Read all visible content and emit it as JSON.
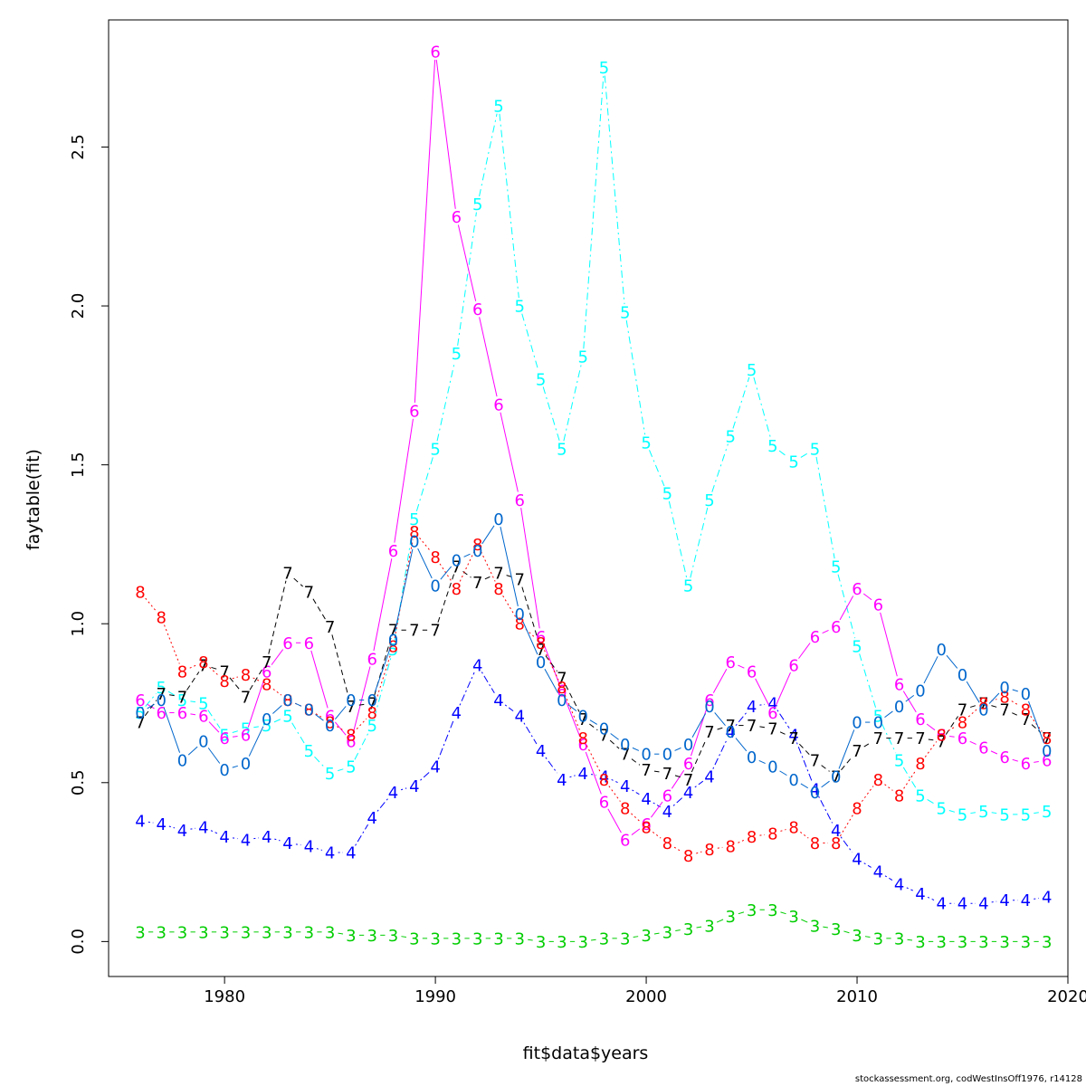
{
  "chart_data": {
    "type": "line",
    "title": "",
    "xlabel": "fit$data$years",
    "ylabel": "faytable(fit)",
    "xlim": [
      1974.5,
      2020
    ],
    "ylim": [
      -0.11,
      2.9
    ],
    "xticks": [
      1980,
      1990,
      2000,
      2010,
      2020
    ],
    "yticks": [
      0.0,
      0.5,
      1.0,
      1.5,
      2.0,
      2.5
    ],
    "xtick_labels": [
      "1980",
      "1990",
      "2000",
      "2010",
      "2020"
    ],
    "ytick_labels": [
      "0.0",
      "0.5",
      "1.0",
      "1.5",
      "2.0",
      "2.5"
    ],
    "x": [
      1976,
      1977,
      1978,
      1979,
      1980,
      1981,
      1982,
      1983,
      1984,
      1985,
      1986,
      1987,
      1988,
      1989,
      1990,
      1991,
      1992,
      1993,
      1994,
      1995,
      1996,
      1997,
      1998,
      1999,
      2000,
      2001,
      2002,
      2003,
      2004,
      2005,
      2006,
      2007,
      2008,
      2009,
      2010,
      2011,
      2012,
      2013,
      2014,
      2015,
      2016,
      2017,
      2018,
      2019
    ],
    "series": [
      {
        "name": "3",
        "color": "#00cd00",
        "dash": "",
        "values": [
          0.03,
          0.03,
          0.03,
          0.03,
          0.03,
          0.03,
          0.03,
          0.03,
          0.03,
          0.03,
          0.02,
          0.02,
          0.02,
          0.01,
          0.01,
          0.01,
          0.01,
          0.01,
          0.01,
          0.0,
          0.0,
          0.0,
          0.01,
          0.01,
          0.02,
          0.03,
          0.04,
          0.05,
          0.08,
          0.1,
          0.1,
          0.08,
          0.05,
          0.04,
          0.02,
          0.01,
          0.01,
          0.0,
          0.0,
          0.0,
          0.0,
          0.0,
          0.0,
          0.0
        ]
      },
      {
        "name": "4",
        "color": "#0000ff",
        "dash": "2,3,8,3",
        "values": [
          0.38,
          0.37,
          0.35,
          0.36,
          0.33,
          0.32,
          0.33,
          0.31,
          0.3,
          0.28,
          0.28,
          0.39,
          0.47,
          0.49,
          0.55,
          0.72,
          0.87,
          0.76,
          0.71,
          0.6,
          0.51,
          0.53,
          0.52,
          0.49,
          0.45,
          0.41,
          0.47,
          0.52,
          0.66,
          0.74,
          0.75,
          0.65,
          0.48,
          0.35,
          0.26,
          0.22,
          0.18,
          0.15,
          0.12,
          0.12,
          0.12,
          0.13,
          0.13,
          0.14
        ]
      },
      {
        "name": "5",
        "color": "#00ffff",
        "dash": "8,4,2,4",
        "values": [
          0.72,
          0.8,
          0.76,
          0.75,
          0.65,
          0.67,
          0.68,
          0.71,
          0.6,
          0.53,
          0.55,
          0.68,
          0.92,
          1.33,
          1.55,
          1.85,
          2.32,
          2.63,
          2.0,
          1.77,
          1.55,
          1.84,
          2.75,
          1.98,
          1.57,
          1.41,
          1.12,
          1.39,
          1.59,
          1.8,
          1.56,
          1.51,
          1.55,
          1.18,
          0.93,
          0.71,
          0.57,
          0.46,
          0.42,
          0.4,
          0.41,
          0.4,
          0.4,
          0.41
        ]
      },
      {
        "name": "6",
        "color": "#ff00ff",
        "dash": "",
        "values": [
          0.76,
          0.72,
          0.72,
          0.71,
          0.64,
          0.65,
          0.85,
          0.94,
          0.94,
          0.71,
          0.63,
          0.89,
          1.23,
          1.67,
          2.8,
          2.28,
          1.99,
          1.69,
          1.39,
          0.96,
          0.79,
          0.62,
          0.44,
          0.32,
          0.37,
          0.46,
          0.56,
          0.76,
          0.88,
          0.85,
          0.72,
          0.87,
          0.96,
          0.99,
          1.11,
          1.06,
          0.81,
          0.7,
          0.65,
          0.64,
          0.61,
          0.58,
          0.56,
          0.57
        ]
      },
      {
        "name": "7",
        "color": "#000000",
        "dash": "6,4",
        "values": [
          0.69,
          0.78,
          0.77,
          0.87,
          0.85,
          0.77,
          0.88,
          1.16,
          1.1,
          0.99,
          0.74,
          0.75,
          0.98,
          0.98,
          0.98,
          1.18,
          1.13,
          1.16,
          1.14,
          0.92,
          0.83,
          0.7,
          0.65,
          0.59,
          0.54,
          0.53,
          0.51,
          0.66,
          0.68,
          0.68,
          0.67,
          0.64,
          0.57,
          0.52,
          0.6,
          0.64,
          0.64,
          0.64,
          0.63,
          0.73,
          0.75,
          0.73,
          0.7,
          0.64
        ]
      },
      {
        "name": "8",
        "color": "#ff0000",
        "dash": "2,3",
        "values": [
          1.1,
          1.02,
          0.85,
          0.88,
          0.82,
          0.84,
          0.81,
          0.76,
          0.73,
          0.69,
          0.65,
          0.72,
          0.93,
          1.29,
          1.21,
          1.11,
          1.25,
          1.11,
          1.0,
          0.94,
          0.8,
          0.64,
          0.51,
          0.42,
          0.36,
          0.31,
          0.27,
          0.29,
          0.3,
          0.33,
          0.34,
          0.36,
          0.31,
          0.31,
          0.42,
          0.51,
          0.46,
          0.56,
          0.65,
          0.69,
          0.75,
          0.77,
          0.73,
          0.64
        ]
      },
      {
        "name": "0",
        "color": "#0066cc",
        "dash": "",
        "values": [
          0.72,
          0.76,
          0.57,
          0.63,
          0.54,
          0.56,
          0.7,
          0.76,
          0.73,
          0.68,
          0.76,
          0.76,
          0.95,
          1.26,
          1.12,
          1.2,
          1.23,
          1.33,
          1.03,
          0.88,
          0.76,
          0.71,
          0.67,
          0.62,
          0.59,
          0.59,
          0.62,
          0.74,
          0.66,
          0.58,
          0.55,
          0.51,
          0.47,
          0.52,
          0.69,
          0.69,
          0.74,
          0.79,
          0.92,
          0.84,
          0.73,
          0.8,
          0.78,
          0.6
        ]
      }
    ]
  },
  "footer": "stockassessment.org, codWestInsOff1976, r14128"
}
